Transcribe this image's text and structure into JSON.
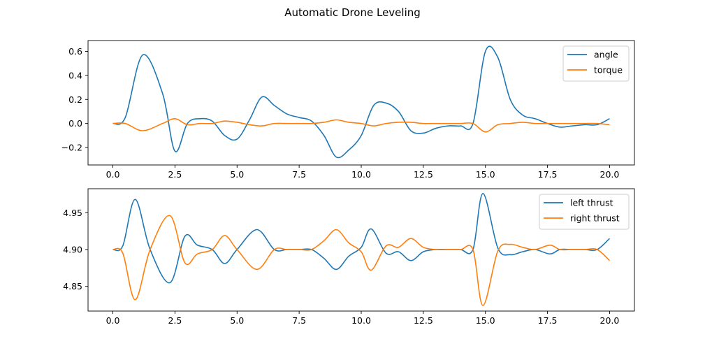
{
  "figure": {
    "title": "Automatic Drone Leveling"
  },
  "chart_data": [
    {
      "type": "line",
      "title": "",
      "xlabel": "",
      "ylabel": "",
      "xlim": [
        -1.0,
        21.0
      ],
      "ylim": [
        -0.345,
        0.69
      ],
      "xticks": [
        0.0,
        2.5,
        5.0,
        7.5,
        10.0,
        12.5,
        15.0,
        17.5,
        20.0
      ],
      "xtick_labels": [
        "0.0",
        "2.5",
        "5.0",
        "7.5",
        "10.0",
        "12.5",
        "15.0",
        "17.5",
        "20.0"
      ],
      "yticks": [
        -0.2,
        0.0,
        0.2,
        0.4,
        0.6
      ],
      "ytick_labels": [
        "−0.2",
        "0.0",
        "0.2",
        "0.4",
        "0.6"
      ],
      "grid": false,
      "legend": "top-right",
      "x": [
        0.0,
        0.5,
        1.2,
        2.0,
        2.5,
        3.0,
        3.5,
        4.0,
        4.5,
        5.0,
        5.5,
        6.0,
        6.5,
        7.0,
        7.5,
        8.0,
        8.5,
        9.0,
        9.5,
        10.0,
        10.5,
        11.0,
        11.5,
        12.0,
        12.5,
        13.0,
        13.5,
        14.0,
        14.5,
        15.0,
        15.5,
        16.0,
        16.5,
        17.0,
        17.5,
        18.0,
        18.5,
        19.0,
        19.5,
        20.0
      ],
      "series": [
        {
          "name": "angle",
          "color": "#1f77b4",
          "values": [
            0.0,
            0.05,
            0.57,
            0.25,
            -0.23,
            0.0,
            0.04,
            0.02,
            -0.1,
            -0.13,
            0.03,
            0.22,
            0.15,
            0.08,
            0.05,
            0.02,
            -0.1,
            -0.28,
            -0.22,
            -0.1,
            0.15,
            0.17,
            0.1,
            -0.06,
            -0.08,
            -0.04,
            -0.02,
            -0.02,
            0.0,
            0.6,
            0.55,
            0.2,
            0.07,
            0.04,
            0.0,
            -0.03,
            -0.02,
            -0.01,
            -0.01,
            0.04
          ]
        },
        {
          "name": "torque",
          "color": "#ff7f0e",
          "values": [
            0.0,
            0.0,
            -0.06,
            0.0,
            0.04,
            -0.01,
            0.0,
            0.0,
            0.02,
            0.01,
            -0.01,
            -0.02,
            0.0,
            0.0,
            0.0,
            0.0,
            0.01,
            0.03,
            0.01,
            0.0,
            -0.02,
            0.0,
            0.01,
            0.01,
            0.0,
            0.0,
            0.0,
            0.0,
            0.0,
            -0.07,
            -0.01,
            0.0,
            0.01,
            0.0,
            0.0,
            0.0,
            0.0,
            0.0,
            0.0,
            -0.01
          ]
        }
      ]
    },
    {
      "type": "line",
      "title": "",
      "xlabel": "",
      "ylabel": "",
      "xlim": [
        -1.0,
        21.0
      ],
      "ylim": [
        4.8165,
        4.9825
      ],
      "xticks": [
        0.0,
        2.5,
        5.0,
        7.5,
        10.0,
        12.5,
        15.0,
        17.5,
        20.0
      ],
      "xtick_labels": [
        "0.0",
        "2.5",
        "5.0",
        "7.5",
        "10.0",
        "12.5",
        "15.0",
        "17.5",
        "20.0"
      ],
      "yticks": [
        4.85,
        4.9,
        4.95
      ],
      "ytick_labels": [
        "4.85",
        "4.90",
        "4.95"
      ],
      "grid": false,
      "legend": "top-right",
      "x": [
        0.0,
        0.4,
        0.9,
        1.5,
        2.3,
        2.9,
        3.4,
        4.0,
        4.5,
        5.0,
        5.8,
        6.5,
        7.0,
        7.5,
        8.0,
        8.5,
        9.0,
        9.5,
        10.0,
        10.4,
        11.0,
        11.5,
        12.0,
        12.5,
        13.0,
        13.5,
        14.0,
        14.5,
        14.9,
        15.5,
        16.0,
        16.5,
        17.0,
        17.6,
        18.0,
        18.5,
        19.0,
        19.5,
        20.0
      ],
      "series": [
        {
          "name": "left thrust",
          "color": "#1f77b4",
          "values": [
            4.9,
            4.905,
            4.968,
            4.9,
            4.855,
            4.918,
            4.906,
            4.9,
            4.881,
            4.9,
            4.927,
            4.9,
            4.9,
            4.9,
            4.9,
            4.888,
            4.873,
            4.891,
            4.903,
            4.928,
            4.895,
            4.897,
            4.885,
            4.897,
            4.9,
            4.9,
            4.9,
            4.9,
            4.976,
            4.902,
            4.893,
            4.897,
            4.9,
            4.894,
            4.9,
            4.9,
            4.9,
            4.9,
            4.915
          ]
        },
        {
          "name": "right thrust",
          "color": "#ff7f0e",
          "values": [
            4.9,
            4.895,
            4.832,
            4.9,
            4.946,
            4.882,
            4.894,
            4.9,
            4.919,
            4.9,
            4.873,
            4.9,
            4.9,
            4.9,
            4.9,
            4.912,
            4.927,
            4.909,
            4.897,
            4.872,
            4.905,
            4.903,
            4.915,
            4.903,
            4.9,
            4.9,
            4.9,
            4.9,
            4.824,
            4.898,
            4.907,
            4.903,
            4.9,
            4.906,
            4.9,
            4.9,
            4.9,
            4.9,
            4.885
          ]
        }
      ]
    }
  ]
}
